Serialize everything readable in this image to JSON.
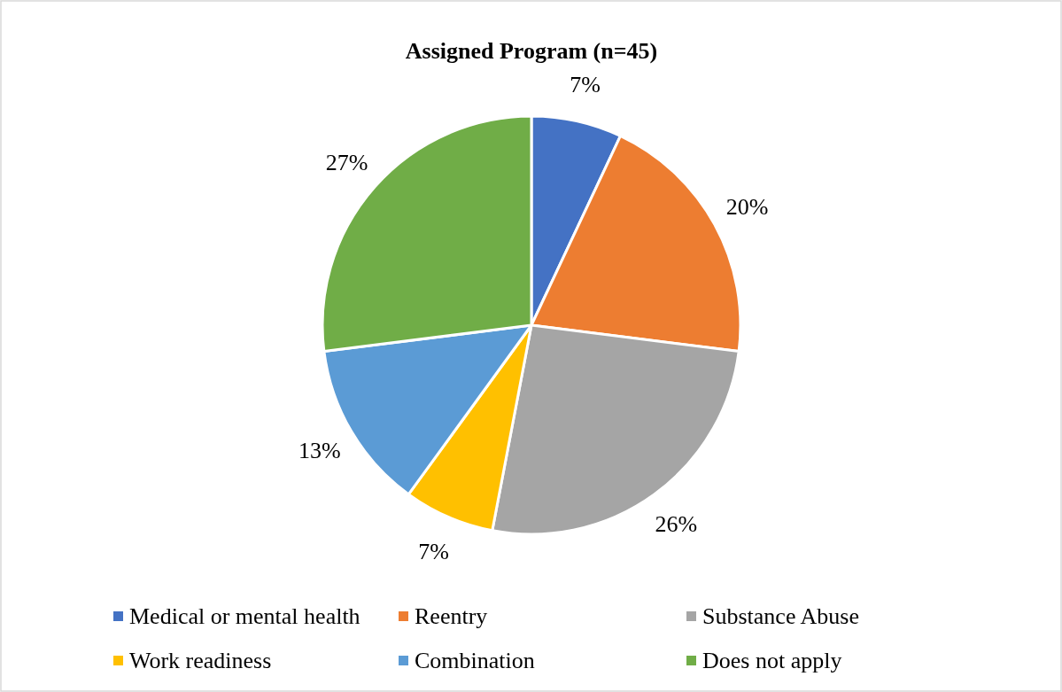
{
  "chart_data": {
    "type": "pie",
    "title": "Assigned Program (n=45)",
    "categories": [
      "Medical or mental health",
      "Reentry",
      "Substance Abuse",
      "Work readiness",
      "Combination",
      "Does not apply"
    ],
    "values": [
      7,
      20,
      26,
      7,
      13,
      27
    ],
    "colors": [
      "#4472c4",
      "#ed7d31",
      "#a5a5a5",
      "#ffc000",
      "#5b9bd5",
      "#70ad47"
    ],
    "value_labels": [
      "7%",
      "20%",
      "26%",
      "7%",
      "13%",
      "27%"
    ],
    "legend": "bottom"
  }
}
